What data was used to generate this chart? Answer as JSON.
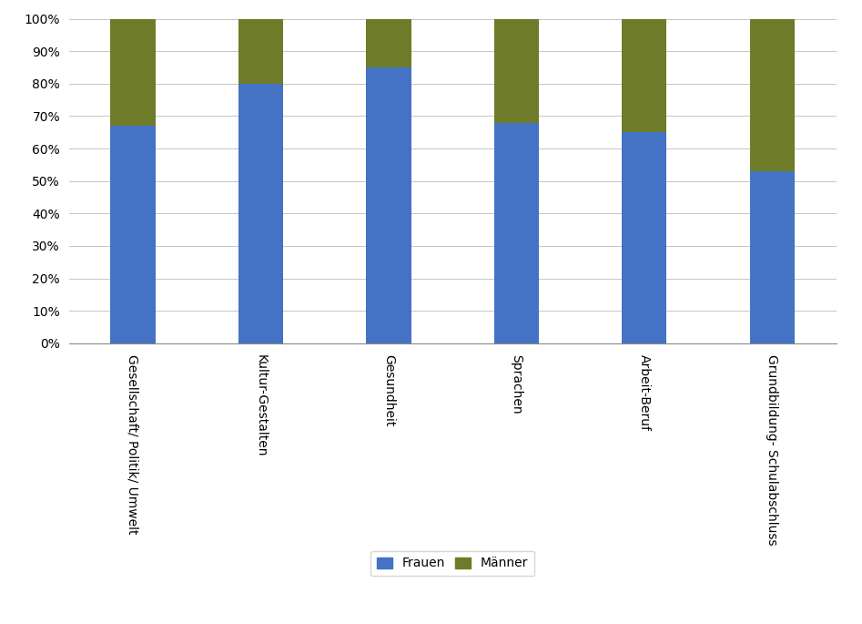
{
  "categories": [
    "Gesellschaft/ Politik/ Umwelt",
    "Kultur-Gestalten",
    "Gesundheit",
    "Sprachen",
    "Arbeit-Beruf",
    "Grundbildung- Schulabschluss"
  ],
  "frauen": [
    67,
    80,
    85,
    68,
    65,
    53
  ],
  "maenner": [
    33,
    20,
    15,
    32,
    35,
    47
  ],
  "frauen_color": "#4472C4",
  "maenner_color": "#6E7B28",
  "background_color": "#FFFFFF",
  "grid_color": "#BBBBBB",
  "legend_frauen": "Frauen",
  "legend_maenner": "Männer",
  "ylabel_values": [
    "0%",
    "10%",
    "20%",
    "30%",
    "40%",
    "50%",
    "60%",
    "70%",
    "80%",
    "90%",
    "100%"
  ],
  "bar_width": 0.35,
  "figsize": [
    9.47,
    6.85
  ],
  "dpi": 100
}
